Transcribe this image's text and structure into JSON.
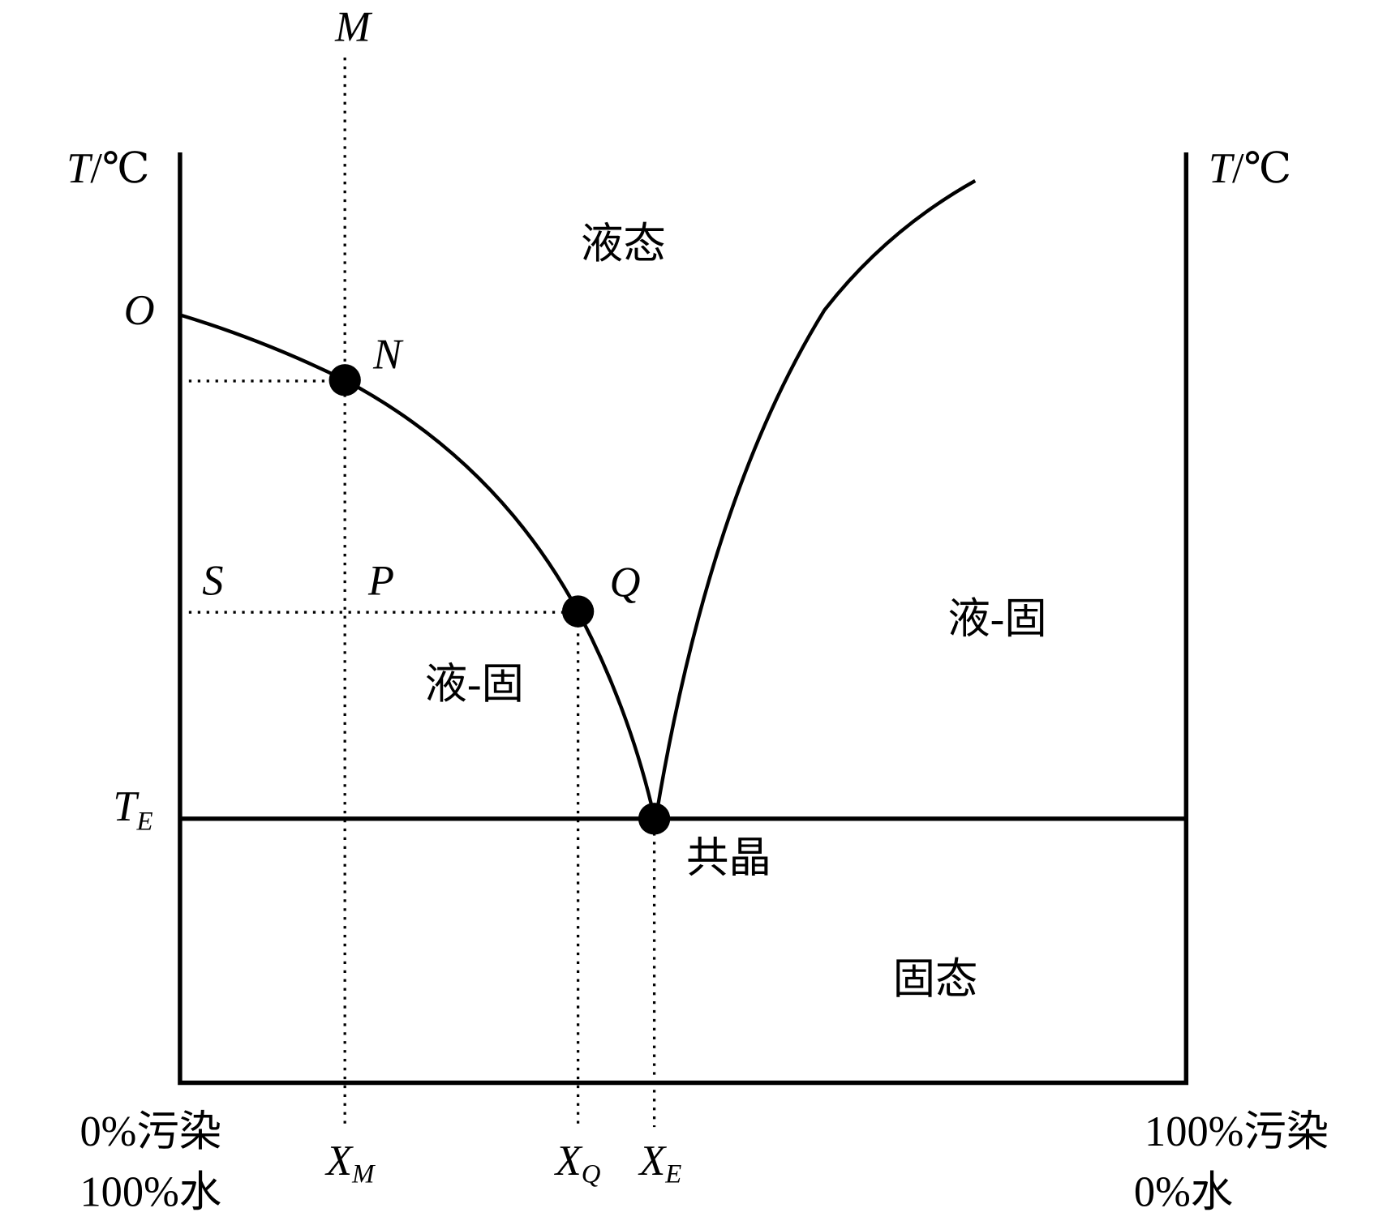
{
  "axes": {
    "top": "M",
    "left_unit": {
      "symbol": "T",
      "rest": "/℃"
    },
    "right_unit": {
      "symbol": "T",
      "rest": "/℃"
    },
    "left_bottom": [
      "0%污染",
      "100%水"
    ],
    "right_bottom": [
      "100%污染",
      "0%水"
    ]
  },
  "points": {
    "O": "O",
    "N": "N",
    "S": "S",
    "P": "P",
    "Q": "Q",
    "TE": {
      "main": "T",
      "sub": "E"
    }
  },
  "x_marks": [
    {
      "main": "X",
      "sub": "M"
    },
    {
      "main": "X",
      "sub": "Q"
    },
    {
      "main": "X",
      "sub": "E"
    }
  ],
  "regions": {
    "liquid": "液态",
    "liquid_solid_left": "液-固",
    "liquid_solid_right": "液-固",
    "eutectic": "共晶",
    "solid": "固态"
  }
}
